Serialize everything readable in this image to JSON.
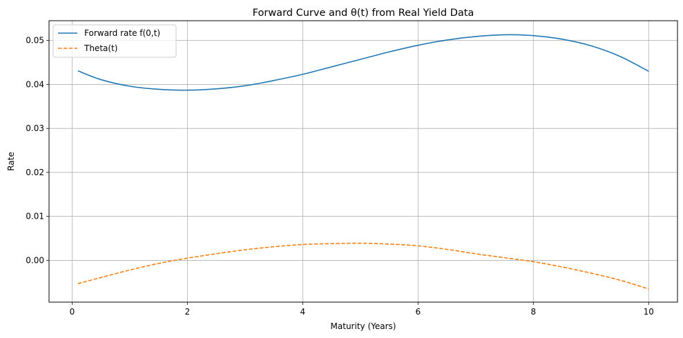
{
  "chart_data": {
    "type": "line",
    "title": "Forward Curve and θ(t) from Real Yield Data",
    "xlabel": "Maturity (Years)",
    "ylabel": "Rate",
    "xlim": [
      -0.4,
      10.5
    ],
    "ylim": [
      -0.0095,
      0.0545
    ],
    "xticks": [
      0,
      2,
      4,
      6,
      8,
      10
    ],
    "xtick_labels": [
      "0",
      "2",
      "4",
      "6",
      "8",
      "10"
    ],
    "yticks": [
      0.0,
      0.01,
      0.02,
      0.03,
      0.04,
      0.05
    ],
    "ytick_labels": [
      "0.00",
      "0.01",
      "0.02",
      "0.03",
      "0.04",
      "0.05"
    ],
    "grid": true,
    "legend_position": "top-left",
    "series": [
      {
        "name": "Forward rate f(0,t)",
        "color": "#1f77b4",
        "style": "solid",
        "x": [
          0.1,
          0.5,
          1.0,
          1.5,
          2.0,
          2.5,
          3.0,
          3.5,
          4.0,
          4.5,
          5.0,
          5.5,
          6.0,
          6.5,
          7.0,
          7.5,
          8.0,
          8.5,
          9.0,
          9.5,
          10.0
        ],
        "y": [
          0.0431,
          0.0411,
          0.0396,
          0.0389,
          0.0387,
          0.039,
          0.0397,
          0.0409,
          0.0423,
          0.044,
          0.0457,
          0.0474,
          0.0489,
          0.0501,
          0.0509,
          0.0513,
          0.0511,
          0.0503,
          0.0488,
          0.0464,
          0.043
        ]
      },
      {
        "name": "Theta(t)",
        "color": "#ff7f0e",
        "style": "dashed",
        "x": [
          0.1,
          0.5,
          1.0,
          1.5,
          2.0,
          2.5,
          3.0,
          3.5,
          4.0,
          4.5,
          5.0,
          5.5,
          6.0,
          6.5,
          7.0,
          7.5,
          8.0,
          8.5,
          9.0,
          9.5,
          10.0
        ],
        "y": [
          -0.0053,
          -0.0039,
          -0.0022,
          -0.0007,
          0.0005,
          0.0015,
          0.0024,
          0.0031,
          0.0036,
          0.0038,
          0.0039,
          0.0037,
          0.0033,
          0.0025,
          0.0015,
          0.0006,
          -0.0003,
          -0.0015,
          -0.0029,
          -0.0045,
          -0.0065
        ]
      }
    ]
  }
}
